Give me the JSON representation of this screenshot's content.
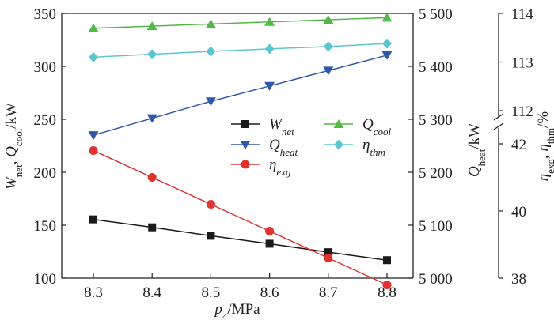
{
  "chart_data": {
    "type": "line",
    "x": [
      8.3,
      8.4,
      8.5,
      8.6,
      8.7,
      8.8
    ],
    "x_tick_labels": [
      "8.3",
      "8.4",
      "8.5",
      "8.6",
      "8.7",
      "8.8"
    ],
    "xlabel": {
      "main": "p",
      "sub": "4",
      "unit": "/MPa"
    },
    "left_axis": {
      "ylim": [
        100,
        350
      ],
      "ticks": [
        100,
        150,
        200,
        250,
        300,
        350
      ],
      "tick_labels": [
        "100",
        "150",
        "200",
        "250",
        "300",
        "350"
      ],
      "label": {
        "a": "W",
        "a_sub": "net",
        "sep": ", ",
        "b": "Q",
        "b_sub": "cool",
        "unit": "/kW"
      }
    },
    "right_axis_1": {
      "ylim": [
        5000,
        5500
      ],
      "ticks": [
        5000,
        5100,
        5200,
        5300,
        5400,
        5500
      ],
      "tick_labels": [
        "5 000",
        "5 100",
        "5 200",
        "5 300",
        "5 400",
        "5 500"
      ],
      "label": {
        "a": "Q",
        "a_sub": "heat",
        "unit": "/kW"
      }
    },
    "right_axis_2": {
      "broken": true,
      "upper": {
        "ticks": [
          112,
          113,
          114
        ],
        "tick_labels": [
          "112",
          "113",
          "114"
        ]
      },
      "lower": {
        "ticks": [
          38,
          40,
          42
        ],
        "tick_labels": [
          "38",
          "40",
          "42"
        ]
      },
      "label": {
        "a": "η",
        "a_sub": "exg",
        "sep": ", ",
        "b": "η",
        "b_sub": "thm",
        "unit": "/%"
      }
    },
    "series": [
      {
        "name": "W",
        "name_sub": "net",
        "axis": "left",
        "color": "#1a1a1a",
        "marker": "square",
        "values": [
          155.5,
          148,
          140,
          132.5,
          124.5,
          117
        ]
      },
      {
        "name": "Q",
        "name_sub": "heat",
        "axis": "right_1",
        "color": "#2f58a8",
        "marker": "triangle-down",
        "values": [
          5270,
          5302,
          5334,
          5363,
          5392,
          5421
        ]
      },
      {
        "name": "η",
        "name_sub": "exg",
        "axis": "right_2",
        "color": "#e0332f",
        "marker": "circle",
        "values": [
          41.8,
          41.0,
          40.2,
          39.4,
          38.6,
          37.8
        ]
      },
      {
        "name": "Q",
        "name_sub": "cool",
        "axis": "left",
        "color": "#54b848",
        "marker": "triangle-up",
        "values": [
          336,
          338,
          340,
          342,
          344,
          346
        ]
      },
      {
        "name": "η",
        "name_sub": "thm",
        "axis": "right_2",
        "color": "#5bc6d0",
        "marker": "diamond",
        "values": [
          113.1,
          113.16,
          113.22,
          113.27,
          113.32,
          113.38
        ]
      }
    ],
    "legend_placement": "center-right, two columns",
    "grid": false
  }
}
